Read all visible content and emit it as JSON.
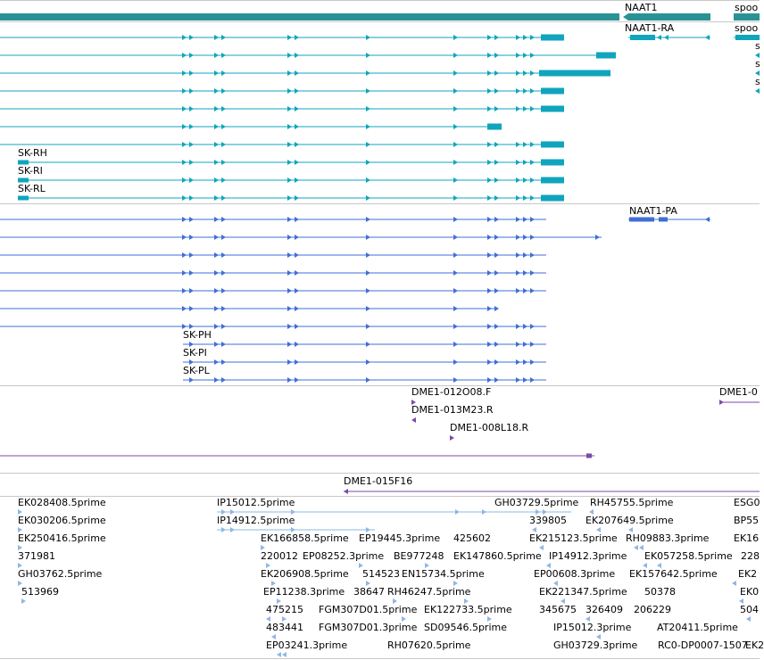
{
  "colors": {
    "gene": "#2a9294",
    "transcript_a": "#10a5bd",
    "transcript_b": "#3f6fd6",
    "primer": "#7a4aa8",
    "est": "#8db8e2"
  },
  "tracks": {
    "gene": {
      "label_1": "NAAT1",
      "label_2": "spoo"
    },
    "transcripts_a": {
      "label_ra": "NAAT1-RA",
      "label_spoo": "spoo",
      "small_s": [
        "s",
        "s",
        "s"
      ],
      "iso_labels": [
        "SK-RH",
        "SK-RI",
        "SK-RL"
      ]
    },
    "transcripts_b": {
      "label_pa": "NAAT1-PA",
      "iso_labels": [
        "SK-PH",
        "SK-PI",
        "SK-PL"
      ]
    },
    "clones": {
      "labels": [
        "DME1-012O08.F",
        "DME1-013M23.R",
        "DME1-008L18.R",
        "DME1-0",
        "DME1-015F16"
      ]
    },
    "ests": {
      "col1": [
        "EK028408.5prime",
        "EK030206.5prime",
        "EK250416.5prime",
        "371981",
        "GH03762.5prime",
        "513969"
      ],
      "col2": [
        "IP15012.5prime",
        "IP14912.5prime",
        "EK166858.5prime",
        "220012",
        "EK206908.5prime",
        "EP11238.3prime",
        "475215",
        "483441",
        "EP03241.3prime"
      ],
      "col3": [
        "EP19445.3prime",
        "EP08252.3prime",
        "514523",
        "38647",
        "FGM307D01.5prime",
        "FGM307D01.3prime"
      ],
      "col4": [
        "BE977248",
        "EN15734.5prime",
        "RH46247.5prime",
        "EK122733.5prime",
        "SD09546.5prime",
        "RH07620.5prime",
        "425602",
        "EK147860.5prime"
      ],
      "col5": [
        "GH03729.5prime",
        "339805",
        "EK215123.5prime",
        "IP14912.3prime",
        "EP00608.3prime",
        "EK221347.5prime",
        "345675",
        "IP15012.3prime",
        "GH03729.3prime",
        "326409",
        "206229"
      ],
      "col6": [
        "RH45755.5prime",
        "EK207649.5prime",
        "RH09883.3prime",
        "EK057258.5prime",
        "EK157642.5prime",
        "50378",
        "AT20411.5prime",
        "RC0-DP0007-1507"
      ],
      "col7": [
        "ESG0",
        "BP55",
        "EK16",
        "228",
        "EK2",
        "EK0",
        "504",
        "EK2"
      ]
    }
  }
}
